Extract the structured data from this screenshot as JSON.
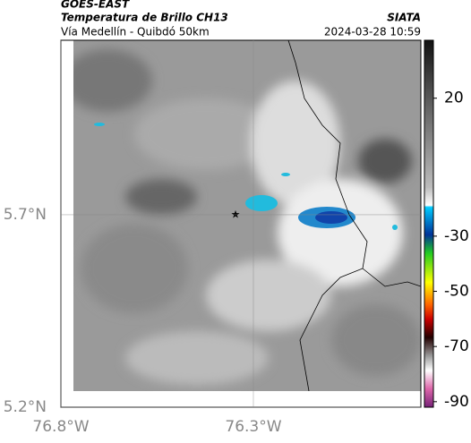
{
  "map": {
    "source": "GOES-EAST",
    "title": "Temperatura de Brillo CH13",
    "subtitle": "Vía Medellín - Quibdó 50km",
    "agency": "SIATA",
    "timestamp": "2024-03-28 10:59",
    "xlim": [
      -76.8,
      -75.865
    ],
    "ylim": [
      5.2,
      6.153
    ],
    "xticks": [
      {
        "value": -76.8,
        "label": "76.8°W"
      },
      {
        "value": -76.3,
        "label": "76.3°W"
      }
    ],
    "yticks": [
      {
        "value": 5.2,
        "label": "5.2°N"
      },
      {
        "value": 5.7,
        "label": "5.7°N"
      }
    ],
    "colorbar_lim": [
      -92,
      41
    ],
    "colorbar_ticks": [
      20,
      -30,
      -50,
      -70,
      -90
    ]
  }
}
